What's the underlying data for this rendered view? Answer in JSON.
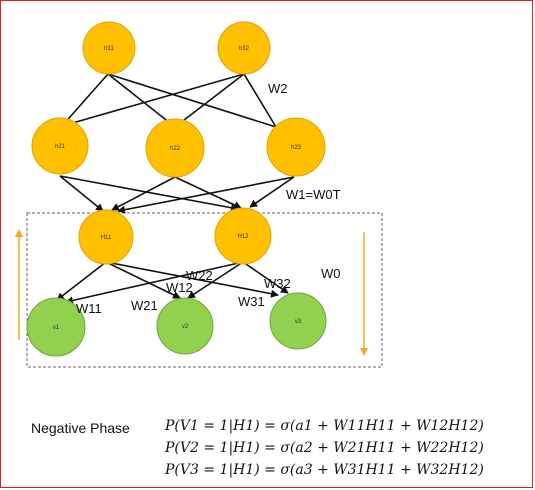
{
  "colors": {
    "hidden_node": "#FFC000",
    "hidden_stroke": "#E0A400",
    "visible_node": "#92D050",
    "visible_stroke": "#6FA63C",
    "edge": "#111111",
    "arrow_orange": "#F5A623",
    "border": "#E02020",
    "box": "#666666"
  },
  "nodes": {
    "h31": "h31",
    "h32": "h32",
    "h21": "h21",
    "h22": "h22",
    "h23": "h23",
    "H11": "H11",
    "H12": "H12",
    "v1": "v1",
    "v2": "v2",
    "v3": "v3"
  },
  "labels": {
    "w2": "W2",
    "w1_eq": "W1=W0T",
    "w0": "W0",
    "w11": "W11",
    "w12": "W12",
    "w21": "W21",
    "w22": "W22",
    "w31": "W31",
    "w32": "W32"
  },
  "equations": {
    "phase_label": "Negative Phase",
    "eq1": "P(V1 = 1|H1) = σ(a1 + W11H11  + W12H12)",
    "eq2": "P(V2 = 1|H1) = σ(a2 + W21H11  + W22H12)",
    "eq3": "P(V3 = 1|H1) = σ(a3 + W31H11  + W32H12)"
  }
}
